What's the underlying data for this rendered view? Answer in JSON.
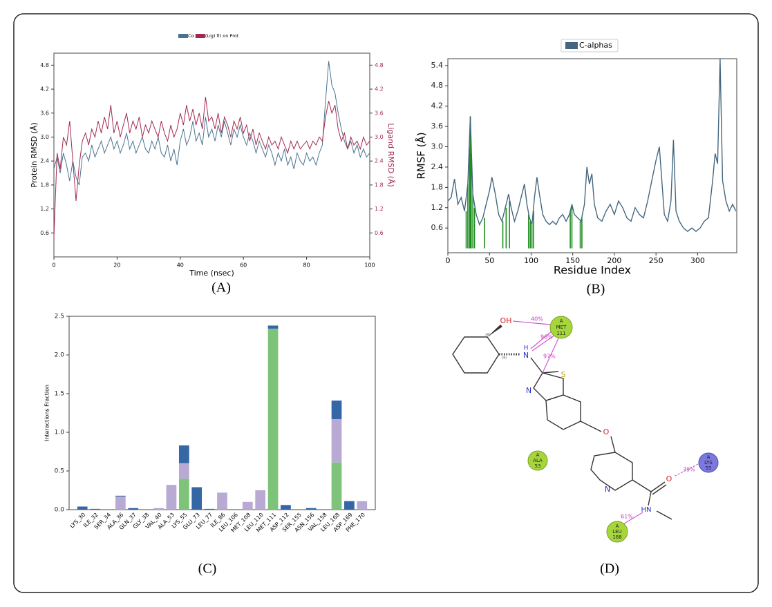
{
  "chart_data": [
    {
      "type": "line",
      "xlabel": "Time (nsec)",
      "ylabel": "Protein RMSD (Å)",
      "y2label": "Ligand RMSD (Å)",
      "x": [
        0,
        1,
        2,
        3,
        4,
        5,
        6,
        7,
        8,
        9,
        10,
        11,
        12,
        13,
        14,
        15,
        16,
        17,
        18,
        19,
        20,
        21,
        22,
        23,
        24,
        25,
        26,
        27,
        28,
        29,
        30,
        31,
        32,
        33,
        34,
        35,
        36,
        37,
        38,
        39,
        40,
        41,
        42,
        43,
        44,
        45,
        46,
        47,
        48,
        49,
        50,
        51,
        52,
        53,
        54,
        55,
        56,
        57,
        58,
        59,
        60,
        61,
        62,
        63,
        64,
        65,
        66,
        67,
        68,
        69,
        70,
        71,
        72,
        73,
        74,
        75,
        76,
        77,
        78,
        79,
        80,
        81,
        82,
        83,
        84,
        85,
        86,
        87,
        88,
        89,
        90,
        91,
        92,
        93,
        94,
        95,
        96,
        97,
        98,
        99,
        100
      ],
      "series": [
        {
          "name": "Cα",
          "color": "#4a7290",
          "values": [
            2.2,
            2.5,
            2.1,
            2.6,
            2.3,
            1.9,
            2.4,
            2.0,
            1.8,
            2.5,
            2.6,
            2.4,
            2.8,
            2.5,
            2.7,
            2.9,
            2.6,
            2.8,
            3.0,
            2.7,
            2.9,
            2.6,
            2.8,
            3.1,
            2.7,
            2.9,
            2.6,
            2.8,
            3.0,
            2.7,
            2.6,
            2.9,
            2.7,
            3.0,
            2.6,
            2.5,
            2.8,
            2.4,
            2.7,
            2.3,
            2.9,
            3.2,
            2.8,
            3.0,
            3.4,
            2.9,
            3.1,
            2.8,
            3.5,
            3.0,
            3.2,
            2.9,
            3.3,
            3.0,
            3.4,
            3.1,
            2.8,
            3.2,
            3.0,
            3.3,
            3.0,
            2.8,
            3.1,
            2.9,
            2.6,
            2.9,
            2.7,
            2.5,
            2.8,
            2.6,
            2.3,
            2.6,
            2.4,
            2.7,
            2.3,
            2.5,
            2.2,
            2.6,
            2.4,
            2.3,
            2.6,
            2.4,
            2.5,
            2.3,
            2.6,
            2.8,
            3.9,
            4.9,
            4.3,
            4.1,
            3.6,
            3.2,
            2.9,
            2.7,
            2.9,
            2.6,
            2.8,
            2.5,
            2.7,
            2.5,
            2.6
          ]
        },
        {
          "name": "(Lig) fit on Prot",
          "color": "#a3284f",
          "axis": "y2",
          "values": [
            0.5,
            2.6,
            2.2,
            3.0,
            2.8,
            3.4,
            2.4,
            1.4,
            2.3,
            2.9,
            3.1,
            2.8,
            3.2,
            3.0,
            3.4,
            3.1,
            3.5,
            3.2,
            3.8,
            3.1,
            3.4,
            3.0,
            3.3,
            3.6,
            3.1,
            3.4,
            3.2,
            3.5,
            3.0,
            3.3,
            3.1,
            3.4,
            3.2,
            3.0,
            3.4,
            3.1,
            2.9,
            3.3,
            3.0,
            3.2,
            3.6,
            3.3,
            3.8,
            3.4,
            3.7,
            3.3,
            3.6,
            3.2,
            4.0,
            3.4,
            3.5,
            3.2,
            3.6,
            3.1,
            3.5,
            3.3,
            3.0,
            3.4,
            3.2,
            3.5,
            3.1,
            3.3,
            2.9,
            3.2,
            2.8,
            3.1,
            2.9,
            2.7,
            3.0,
            2.8,
            2.9,
            2.7,
            3.0,
            2.8,
            2.6,
            2.9,
            2.7,
            2.9,
            2.7,
            2.8,
            2.9,
            2.7,
            2.9,
            2.8,
            3.0,
            2.9,
            3.5,
            3.9,
            3.6,
            3.8,
            3.2,
            2.9,
            3.1,
            2.7,
            3.0,
            2.8,
            2.9,
            2.7,
            3.0,
            2.8,
            2.9
          ]
        }
      ],
      "xlim": [
        0,
        100
      ],
      "xticks": [
        0,
        20,
        40,
        60,
        80,
        100
      ],
      "ylim": [
        0,
        5.1
      ],
      "yticks": [
        0.6,
        1.2,
        1.8,
        2.4,
        {
          "value": 3,
          "label": "3.0"
        },
        3.6,
        4.2,
        4.8
      ],
      "y2lim": [
        0,
        5.1
      ],
      "y2ticks": [
        0.6,
        1.2,
        1.8,
        2.4,
        {
          "value": 3,
          "label": "3.0"
        },
        3.6,
        4.2,
        4.8
      ]
    },
    {
      "type": "line",
      "xlabel": "Residue Index",
      "ylabel": "RMSF (Å)",
      "x": [
        0,
        4,
        8,
        12,
        16,
        20,
        24,
        27,
        30,
        34,
        38,
        42,
        46,
        50,
        53,
        57,
        61,
        65,
        69,
        73,
        76,
        80,
        84,
        88,
        92,
        95,
        98,
        101,
        104,
        107,
        110,
        114,
        118,
        122,
        126,
        130,
        134,
        138,
        142,
        146,
        149,
        152,
        156,
        160,
        164,
        167,
        170,
        173,
        176,
        180,
        185,
        190,
        195,
        200,
        205,
        210,
        215,
        220,
        225,
        230,
        235,
        240,
        245,
        250,
        254,
        257,
        260,
        264,
        268,
        271,
        274,
        278,
        283,
        288,
        293,
        298,
        303,
        308,
        313,
        318,
        321,
        324,
        327,
        330,
        334,
        338,
        342,
        346
      ],
      "series": [
        {
          "name": "C-alphas",
          "color": "#44677f",
          "values": [
            1.4,
            1.5,
            2.05,
            1.3,
            1.5,
            1.1,
            1.9,
            3.9,
            1.6,
            1.0,
            0.7,
            0.9,
            1.3,
            1.7,
            2.1,
            1.6,
            1.0,
            0.8,
            1.2,
            1.6,
            1.2,
            0.8,
            1.1,
            1.5,
            1.9,
            1.3,
            0.9,
            0.7,
            1.5,
            2.1,
            1.6,
            1.0,
            0.8,
            0.7,
            0.8,
            0.7,
            0.9,
            1.0,
            0.8,
            1.0,
            1.3,
            1.0,
            0.9,
            0.8,
            1.3,
            2.4,
            1.9,
            2.2,
            1.3,
            0.9,
            0.8,
            1.1,
            1.3,
            1.0,
            1.4,
            1.2,
            0.9,
            0.8,
            1.2,
            1.0,
            0.9,
            1.4,
            2.0,
            2.6,
            3.0,
            2.0,
            1.0,
            0.8,
            1.4,
            3.2,
            1.1,
            0.8,
            0.6,
            0.5,
            0.6,
            0.5,
            0.6,
            0.8,
            0.9,
            2.0,
            2.8,
            2.5,
            5.6,
            2.0,
            1.4,
            1.1,
            1.3,
            1.1
          ]
        }
      ],
      "contacts": {
        "color": "#1e8c1e",
        "x": [
          22,
          24,
          26,
          27,
          28,
          30,
          32,
          44,
          66,
          70,
          74,
          97,
          99,
          101,
          103,
          147,
          149,
          159,
          161
        ],
        "values": [
          1.1,
          1.9,
          3.0,
          3.9,
          2.8,
          1.6,
          1.2,
          0.9,
          0.8,
          1.2,
          1.4,
          1.0,
          0.8,
          0.7,
          1.1,
          1.1,
          1.3,
          0.8,
          0.9
        ]
      },
      "xlim": [
        0,
        347
      ],
      "xticks": [
        0,
        50,
        100,
        150,
        200,
        250,
        300
      ],
      "ylim": [
        -0.13,
        5.6
      ],
      "yticks": [
        0.6,
        1.2,
        1.8,
        2.4,
        {
          "value": 3,
          "label": "3.0"
        },
        3.6,
        4.2,
        4.8,
        5.4
      ]
    },
    {
      "type": "bar",
      "stacked": true,
      "ylabel": "Interactions Fraction",
      "categories": [
        "LYS_30",
        "ILE_32",
        "SER_34",
        "ALA_36",
        "GLN_37",
        "GLY_38",
        "VAL_40",
        "ALA_53",
        "LYS_55",
        "GLU_73",
        "LEU_77",
        "ILE_86",
        "LEU_106",
        "MET_108",
        "LEU_110",
        "MET_111",
        "ASP_112",
        "SER_155",
        "ASN_156",
        "VAL_158",
        "LEU_168",
        "ASP_169",
        "PHE_170"
      ],
      "series": [
        {
          "color": "#7dc47a",
          "values": [
            0,
            0,
            0,
            0,
            0,
            0,
            0,
            0,
            0.4,
            0,
            0,
            0,
            0,
            0,
            0,
            2.34,
            0,
            0,
            0,
            0,
            0.61,
            0,
            0
          ]
        },
        {
          "color": "#b9aad3",
          "values": [
            0,
            0,
            0,
            0.17,
            0,
            0,
            0.02,
            0.32,
            0.2,
            0,
            0,
            0.22,
            0,
            0.1,
            0.25,
            0,
            0,
            0,
            0,
            0,
            0.56,
            0,
            0.11
          ]
        },
        {
          "color": "#3566a6",
          "values": [
            0.04,
            0.01,
            0.005,
            0.01,
            0.02,
            0.005,
            0,
            0,
            0.23,
            0.29,
            0.01,
            0,
            0,
            0,
            0,
            0.04,
            0.06,
            0,
            0.02,
            0,
            0.24,
            0.11,
            0
          ]
        }
      ],
      "ylim": [
        0,
        2.5
      ],
      "yticks": [
        {
          "value": 0,
          "label": "0.0"
        },
        0.5,
        {
          "value": 1,
          "label": "1.0"
        },
        1.5,
        {
          "value": 2,
          "label": "2.0"
        },
        2.5
      ]
    }
  ],
  "captions": [
    "(A)",
    "(B)",
    "(C)",
    "(D)"
  ],
  "diagram": {
    "atoms": [
      "OH",
      "N",
      "H",
      "S",
      "N",
      "O",
      "O",
      "N",
      "HN"
    ],
    "stereo": [
      "(R)",
      "(R)"
    ],
    "residues": [
      {
        "chain": "A",
        "name": "MET",
        "number": 111
      },
      {
        "chain": "A",
        "name": "ALA",
        "number": 53
      },
      {
        "chain": "A",
        "name": "LYS",
        "number": 55
      },
      {
        "chain": "A",
        "name": "LEU",
        "number": 168
      }
    ],
    "interactions": [
      "40%",
      "96%",
      "97%",
      "39%",
      "61%"
    ]
  }
}
